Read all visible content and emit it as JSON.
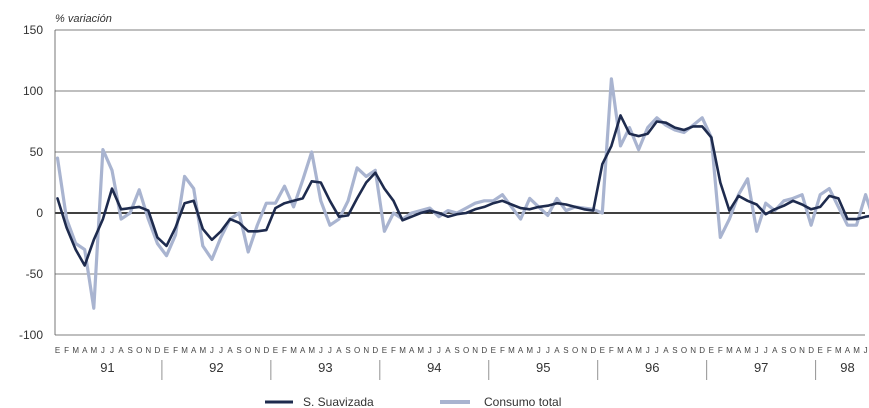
{
  "chart_data": {
    "type": "line",
    "ylabel": "% variación",
    "ylim": [
      -100,
      150
    ],
    "yticks": [
      150,
      100,
      50,
      0,
      -50,
      -100
    ],
    "grid": true,
    "month_letters": [
      "E",
      "F",
      "M",
      "A",
      "M",
      "J",
      "J",
      "A",
      "S",
      "O",
      "N",
      "D"
    ],
    "years": [
      "91",
      "92",
      "93",
      "94",
      "95",
      "96",
      "97",
      "98"
    ],
    "last_year_months": 7,
    "colors": {
      "S. Suavizada": "#1e2b4e",
      "Consumo total": "#a9b4d0"
    },
    "series": [
      {
        "name": "S. Suavizada",
        "values": [
          12,
          -12,
          -30,
          -43,
          -22,
          -5,
          20,
          3,
          4,
          5,
          2,
          -20,
          -27,
          -12,
          8,
          10,
          -13,
          -22,
          -15,
          -5,
          -8,
          -15,
          -15,
          -14,
          4,
          8,
          10,
          12,
          26,
          25,
          10,
          -3,
          -2,
          12,
          25,
          33,
          20,
          10,
          -6,
          -3,
          0,
          2,
          0,
          -3,
          -1,
          0,
          3,
          5,
          8,
          10,
          7,
          4,
          3,
          5,
          6,
          8,
          7,
          5,
          3,
          2,
          40,
          55,
          80,
          65,
          63,
          65,
          75,
          74,
          70,
          68,
          71,
          71,
          62,
          25,
          2,
          14,
          10,
          7,
          -1,
          3,
          6,
          10,
          7,
          3,
          5,
          14,
          12,
          -5,
          -5,
          -3,
          -2
        ]
      },
      {
        "name": "Consumo total",
        "values": [
          45,
          -5,
          -25,
          -30,
          -78,
          52,
          35,
          -5,
          0,
          19,
          -5,
          -25,
          -35,
          -18,
          30,
          20,
          -27,
          -38,
          -20,
          -5,
          0,
          -32,
          -10,
          8,
          8,
          22,
          5,
          27,
          50,
          10,
          -10,
          -5,
          10,
          37,
          30,
          35,
          -15,
          0,
          -5,
          0,
          2,
          4,
          -3,
          2,
          0,
          4,
          8,
          10,
          10,
          15,
          5,
          -5,
          12,
          5,
          -2,
          12,
          2,
          5,
          4,
          3,
          0,
          110,
          55,
          70,
          52,
          70,
          78,
          72,
          68,
          66,
          72,
          78,
          62,
          -20,
          -5,
          15,
          28,
          -15,
          8,
          2,
          10,
          12,
          15,
          -10,
          15,
          20,
          5,
          -10,
          -10,
          15,
          -8
        ]
      }
    ],
    "legend": {
      "position": "bottom-center",
      "entries": [
        "S. Suavizada",
        "Consumo total"
      ]
    }
  }
}
